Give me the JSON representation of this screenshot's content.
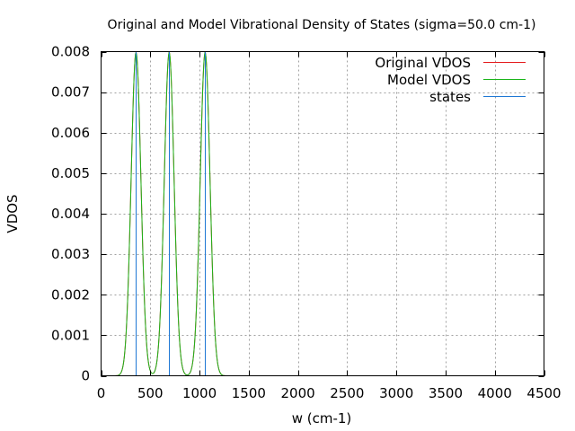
{
  "chart_data": {
    "type": "line",
    "title": "Original and Model Vibrational Density of States (sigma=50.0 cm-1)",
    "xlabel": "w (cm-1)",
    "ylabel": "VDOS",
    "xlim": [
      0,
      4500
    ],
    "ylim": [
      0,
      0.008
    ],
    "x_ticks": [
      0,
      500,
      1000,
      1500,
      2000,
      2500,
      3000,
      3500,
      4000,
      4500
    ],
    "x_tick_labels": [
      "0",
      "500",
      "1000",
      "1500",
      "2000",
      "2500",
      "3000",
      "3500",
      "4000",
      "4500"
    ],
    "y_ticks": [
      0,
      0.001,
      0.002,
      0.003,
      0.004,
      0.005,
      0.006,
      0.007,
      0.008
    ],
    "y_tick_labels": [
      "0",
      "0.001",
      "0.002",
      "0.003",
      "0.004",
      "0.005",
      "0.006",
      "0.007",
      "0.008"
    ],
    "grid": true,
    "legend_position": "top-right",
    "sigma": 50.0,
    "states": [
      355,
      692,
      1057
    ],
    "series": [
      {
        "name": "Original VDOS",
        "color": "#e41a1c",
        "kind": "gaussian-sum",
        "visible_in_plot": false
      },
      {
        "name": "Model VDOS",
        "color": "#1ab51a",
        "kind": "gaussian-sum"
      },
      {
        "name": "states",
        "color": "#1f78d4",
        "kind": "impulses"
      }
    ]
  }
}
